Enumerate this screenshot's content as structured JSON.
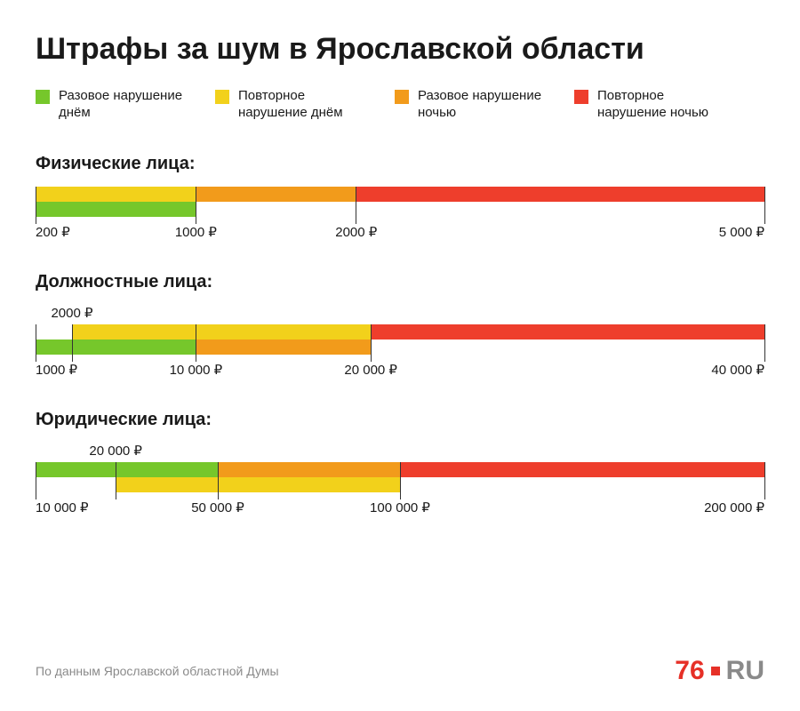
{
  "title": "Штрафы за шум в Ярославской области",
  "colors": {
    "green": "#76c72b",
    "yellow": "#f2d11b",
    "orange": "#f29b1b",
    "red": "#ee3e2c",
    "tick": "#333333",
    "text": "#1a1a1a",
    "muted": "#8a8a8a",
    "bg": "#ffffff"
  },
  "legend": [
    {
      "label": "Разовое нарушение днём",
      "color": "#76c72b"
    },
    {
      "label": "Повторное нарушение днём",
      "color": "#f2d11b"
    },
    {
      "label": "Разовое нарушение ночью",
      "color": "#f29b1b"
    },
    {
      "label": "Повторное нарушение ночью",
      "color": "#ee3e2c"
    }
  ],
  "groups": [
    {
      "title": "Физические лица:",
      "top_annotations": [],
      "segments": [
        {
          "row": "top",
          "color": "#f2d11b",
          "start_pct": 0,
          "end_pct": 22
        },
        {
          "row": "top",
          "color": "#f29b1b",
          "start_pct": 22,
          "end_pct": 44
        },
        {
          "row": "top",
          "color": "#ee3e2c",
          "start_pct": 44,
          "end_pct": 100
        },
        {
          "row": "bottom",
          "color": "#76c72b",
          "start_pct": 0,
          "end_pct": 22
        }
      ],
      "ticks_pct": [
        0,
        22,
        44,
        100
      ],
      "axis_labels": [
        {
          "text": "200 ₽",
          "pct": 0,
          "pos": "first"
        },
        {
          "text": "1000 ₽",
          "pct": 22,
          "pos": "mid"
        },
        {
          "text": "2000 ₽",
          "pct": 44,
          "pos": "mid"
        },
        {
          "text": "5 000 ₽",
          "pct": 100,
          "pos": "last"
        }
      ]
    },
    {
      "title": "Должностные лица:",
      "top_annotations": [
        {
          "text": "2000 ₽",
          "pct": 5
        }
      ],
      "segments": [
        {
          "row": "top",
          "color": "#f2d11b",
          "start_pct": 5,
          "end_pct": 22
        },
        {
          "row": "top",
          "color": "#f2d11b",
          "start_pct": 22,
          "end_pct": 46
        },
        {
          "row": "top",
          "color": "#ee3e2c",
          "start_pct": 46,
          "end_pct": 100
        },
        {
          "row": "bottom",
          "color": "#76c72b",
          "start_pct": 0,
          "end_pct": 22
        },
        {
          "row": "bottom",
          "color": "#f29b1b",
          "start_pct": 22,
          "end_pct": 46
        }
      ],
      "ticks_pct": [
        0,
        5,
        22,
        46,
        100
      ],
      "axis_labels": [
        {
          "text": "1000 ₽",
          "pct": 0,
          "pos": "first"
        },
        {
          "text": "10 000 ₽",
          "pct": 22,
          "pos": "mid"
        },
        {
          "text": "20 000 ₽",
          "pct": 46,
          "pos": "mid"
        },
        {
          "text": "40 000 ₽",
          "pct": 100,
          "pos": "last"
        }
      ]
    },
    {
      "title": "Юридические лица:",
      "top_annotations": [
        {
          "text": "20 000 ₽",
          "pct": 11
        }
      ],
      "segments": [
        {
          "row": "top",
          "color": "#76c72b",
          "start_pct": 0,
          "end_pct": 25
        },
        {
          "row": "top",
          "color": "#f29b1b",
          "start_pct": 25,
          "end_pct": 50
        },
        {
          "row": "top",
          "color": "#ee3e2c",
          "start_pct": 50,
          "end_pct": 100
        },
        {
          "row": "bottom",
          "color": "#f2d11b",
          "start_pct": 11,
          "end_pct": 50
        }
      ],
      "ticks_pct": [
        0,
        11,
        25,
        50,
        100
      ],
      "axis_labels": [
        {
          "text": "10 000 ₽",
          "pct": 0,
          "pos": "first"
        },
        {
          "text": "50 000 ₽",
          "pct": 25,
          "pos": "mid"
        },
        {
          "text": "100 000 ₽",
          "pct": 50,
          "pos": "mid"
        },
        {
          "text": "200 000 ₽",
          "pct": 100,
          "pos": "last"
        }
      ]
    }
  ],
  "source": "По данным Ярославской областной Думы",
  "logo": {
    "num": "76",
    "ru": "RU",
    "color_accent": "#e63027",
    "color_muted": "#8a8a8a"
  }
}
